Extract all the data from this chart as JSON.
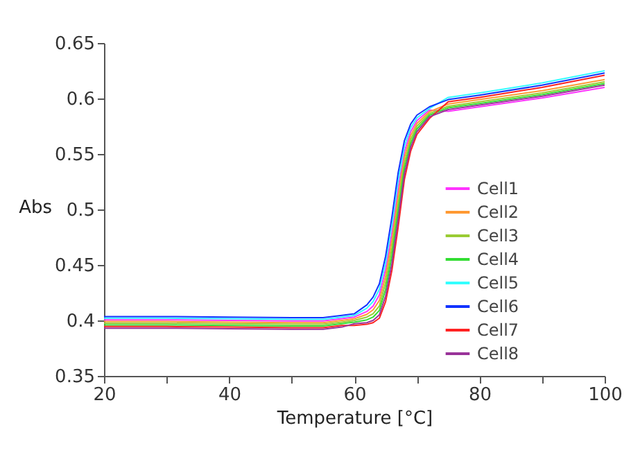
{
  "chart_data": {
    "type": "line",
    "xlabel": "Temperature [°C]",
    "ylabel": "Abs",
    "x": [
      20,
      30,
      40,
      50,
      55,
      58,
      60,
      62,
      63,
      64,
      65,
      66,
      67,
      68,
      69,
      70,
      72,
      75,
      80,
      90,
      100
    ],
    "xlim": [
      20,
      100
    ],
    "xticks": [
      20,
      {
        "value": 30,
        "label": null
      },
      40,
      {
        "value": 50,
        "label": null
      },
      60,
      {
        "value": 70,
        "label": null
      },
      80,
      {
        "value": 90,
        "label": null
      },
      100
    ],
    "ylim": [
      0.35,
      0.65
    ],
    "yticks": [
      0.35,
      0.4,
      0.45,
      0.5,
      0.55,
      0.6,
      0.65
    ],
    "grid": false,
    "legend": "right",
    "marker": "none",
    "line_style": "solid",
    "series": [
      {
        "name": "Cell1",
        "color": "#ff33ff",
        "values": [
          0.4005,
          0.4005,
          0.4,
          0.3995,
          0.3995,
          0.4015,
          0.403,
          0.408,
          0.413,
          0.423,
          0.446,
          0.479,
          0.519,
          0.552,
          0.57,
          0.58,
          0.5895,
          0.5885,
          0.5925,
          0.6005,
          0.61
        ]
      },
      {
        "name": "Cell2",
        "color": "#ff9933",
        "values": [
          0.399,
          0.399,
          0.3985,
          0.398,
          0.398,
          0.4,
          0.4015,
          0.4055,
          0.4095,
          0.418,
          0.44,
          0.472,
          0.512,
          0.547,
          0.5665,
          0.5775,
          0.588,
          0.595,
          0.599,
          0.607,
          0.617
        ]
      },
      {
        "name": "Cell3",
        "color": "#99cc33",
        "values": [
          0.3975,
          0.3975,
          0.397,
          0.3965,
          0.3965,
          0.3985,
          0.4,
          0.403,
          0.406,
          0.413,
          0.434,
          0.465,
          0.505,
          0.542,
          0.563,
          0.575,
          0.5865,
          0.593,
          0.597,
          0.605,
          0.615
        ]
      },
      {
        "name": "Cell4",
        "color": "#33dd33",
        "values": [
          0.396,
          0.396,
          0.3955,
          0.395,
          0.395,
          0.397,
          0.3985,
          0.4005,
          0.403,
          0.409,
          0.428,
          0.458,
          0.498,
          0.537,
          0.5595,
          0.5725,
          0.585,
          0.5915,
          0.5955,
          0.6035,
          0.6135
        ]
      },
      {
        "name": "Cell5",
        "color": "#33ffff",
        "values": [
          0.402,
          0.402,
          0.4015,
          0.401,
          0.401,
          0.403,
          0.4045,
          0.411,
          0.417,
          0.428,
          0.452,
          0.486,
          0.526,
          0.557,
          0.5735,
          0.5825,
          0.591,
          0.601,
          0.605,
          0.614,
          0.625
        ]
      },
      {
        "name": "Cell6",
        "color": "#1133ff",
        "values": [
          0.4035,
          0.4035,
          0.403,
          0.4025,
          0.4025,
          0.4045,
          0.406,
          0.414,
          0.421,
          0.433,
          0.458,
          0.493,
          0.533,
          0.562,
          0.577,
          0.585,
          0.5925,
          0.599,
          0.603,
          0.612,
          0.623
        ]
      },
      {
        "name": "Cell7",
        "color": "#ff2222",
        "values": [
          0.3945,
          0.3945,
          0.394,
          0.3935,
          0.3935,
          0.3955,
          0.3955,
          0.3965,
          0.398,
          0.402,
          0.417,
          0.445,
          0.484,
          0.527,
          0.5525,
          0.5675,
          0.582,
          0.597,
          0.601,
          0.61,
          0.621
        ]
      },
      {
        "name": "Cell8",
        "color": "#993399",
        "values": [
          0.393,
          0.393,
          0.3925,
          0.392,
          0.392,
          0.394,
          0.397,
          0.398,
          0.4,
          0.405,
          0.422,
          0.451,
          0.491,
          0.532,
          0.556,
          0.57,
          0.5835,
          0.59,
          0.594,
          0.602,
          0.612
        ]
      }
    ]
  }
}
